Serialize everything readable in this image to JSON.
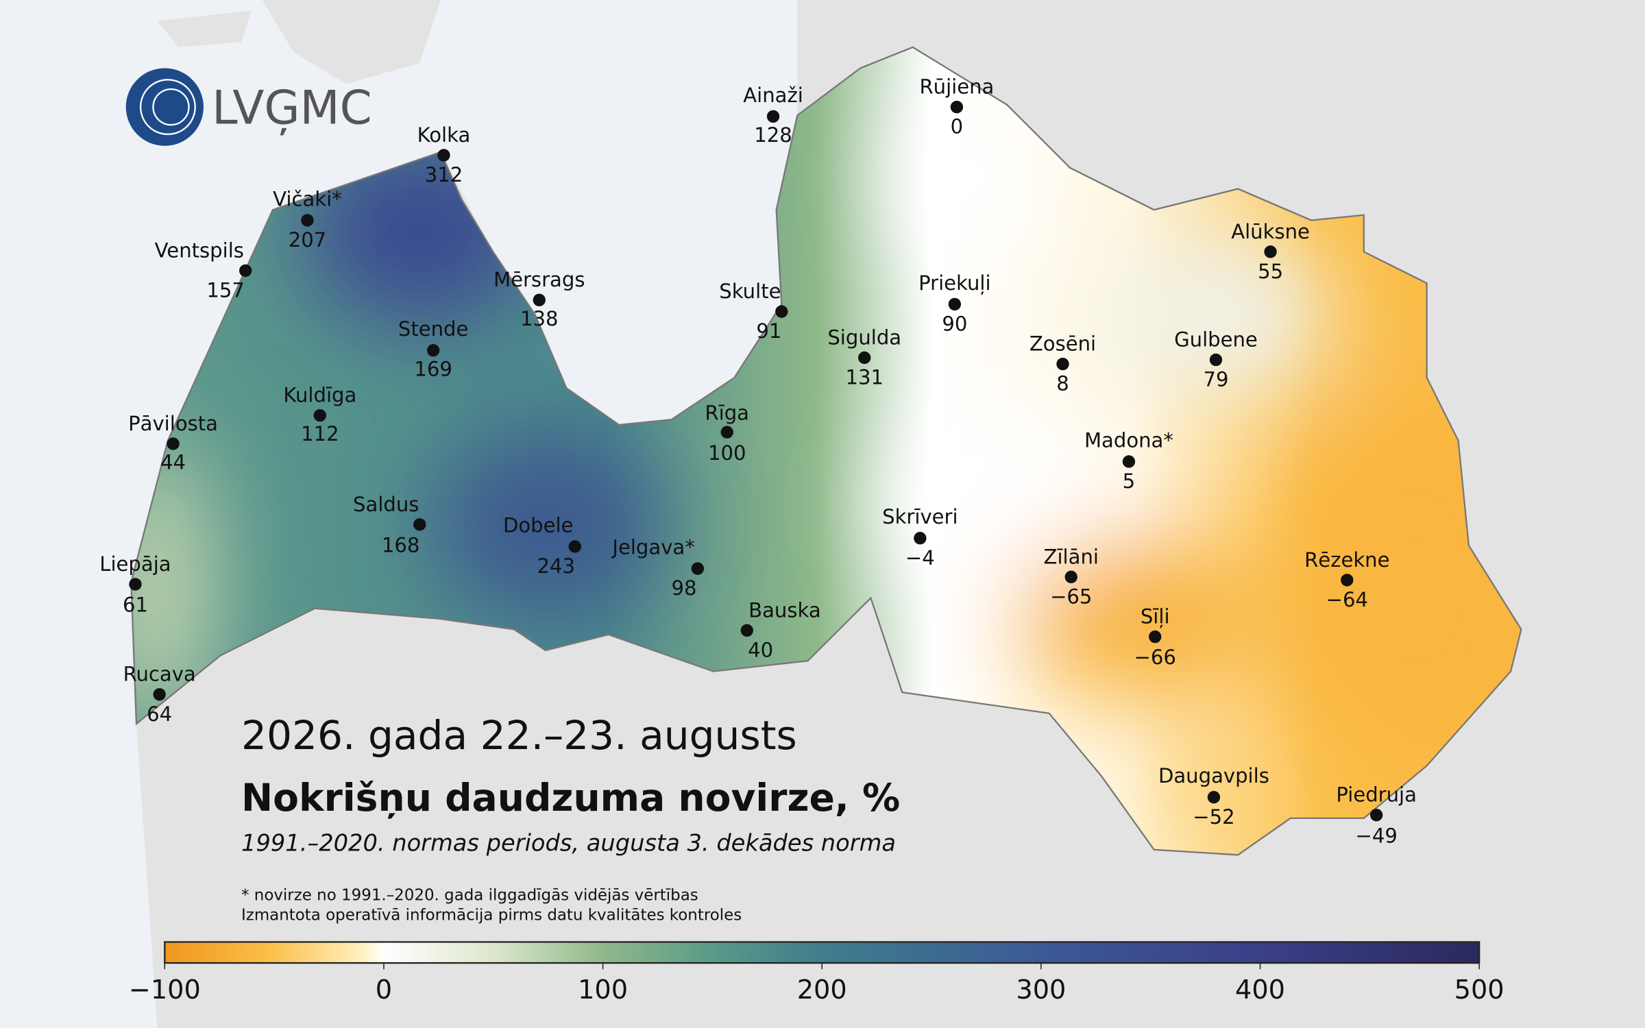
{
  "logo": "LVĢMC",
  "title": {
    "date": "2026. gada 22.–23. augusts",
    "heading": "Nokrišņu daudzuma novirze, %",
    "subtitle": "1991.–2020. normas periods, augusta 3. dekādes norma"
  },
  "notes": [
    "* novirze no 1991.–2020. gada ilggadīgās vidējās vērtības",
    "Izmantota operatīvā informācija pirms datu kvalitātes kontroles"
  ],
  "stations": [
    {
      "name": "Kolka",
      "value": "312"
    },
    {
      "name": "Vičaki*",
      "value": "207"
    },
    {
      "name": "Ventspils",
      "value": "157"
    },
    {
      "name": "Mērsrags",
      "value": "138"
    },
    {
      "name": "Stende",
      "value": "169"
    },
    {
      "name": "Kuldīga",
      "value": "112"
    },
    {
      "name": "Pāvilosta",
      "value": "44"
    },
    {
      "name": "Saldus",
      "value": "168"
    },
    {
      "name": "Dobele",
      "value": "243"
    },
    {
      "name": "Liepāja",
      "value": "61"
    },
    {
      "name": "Rucava",
      "value": "64"
    },
    {
      "name": "Ainaži",
      "value": "128"
    },
    {
      "name": "Rūjiena",
      "value": "0"
    },
    {
      "name": "Skulte",
      "value": "91"
    },
    {
      "name": "Rīga",
      "value": "100"
    },
    {
      "name": "Jelgava*",
      "value": "98"
    },
    {
      "name": "Bauska",
      "value": "40"
    },
    {
      "name": "Sigulda",
      "value": "131"
    },
    {
      "name": "Priekuļi",
      "value": "90"
    },
    {
      "name": "Zosēni",
      "value": "8"
    },
    {
      "name": "Alūksne",
      "value": "55"
    },
    {
      "name": "Gulbene",
      "value": "79"
    },
    {
      "name": "Madona*",
      "value": "5"
    },
    {
      "name": "Skrīveri",
      "value": "−4"
    },
    {
      "name": "Zīlāni",
      "value": "−65"
    },
    {
      "name": "Sīļi",
      "value": "−66"
    },
    {
      "name": "Rēzekne",
      "value": "−64"
    },
    {
      "name": "Daugavpils",
      "value": "−52"
    },
    {
      "name": "Piedruja",
      "value": "−49"
    }
  ],
  "colorbar": {
    "range": [
      -100,
      500
    ],
    "ticks": [
      {
        "value": -100,
        "label": "−100"
      },
      0,
      100,
      200,
      300,
      400,
      500
    ]
  }
}
